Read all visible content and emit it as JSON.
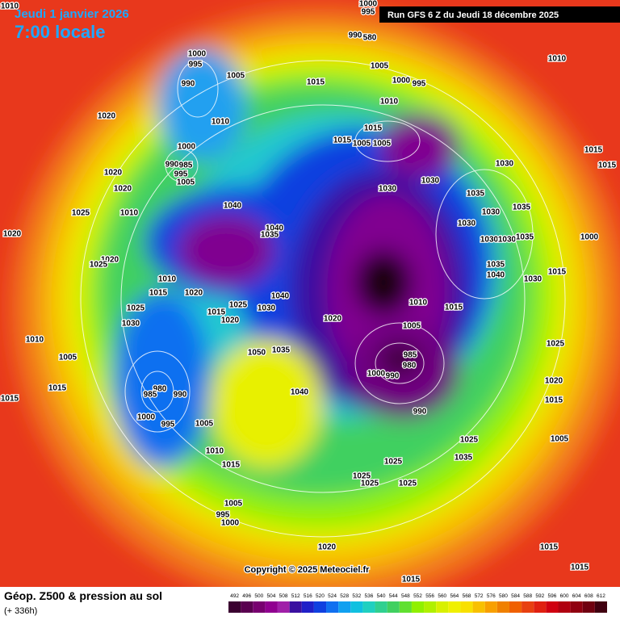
{
  "header": {
    "date": "Jeudi 1 janvier 2026",
    "time": "7:00 locale",
    "run": "Run GFS 6 Z du Jeudi 18 décembre 2025"
  },
  "copyright": "Copyright © 2025 Meteociel.fr",
  "footer": {
    "title": "Géop. Z500 & pression au sol",
    "lead": "(+ 336h)"
  },
  "legend": {
    "ticks": [
      492,
      496,
      500,
      504,
      508,
      512,
      516,
      520,
      524,
      528,
      532,
      536,
      540,
      544,
      548,
      552,
      556,
      560,
      564,
      568,
      572,
      576,
      580,
      584,
      588,
      592,
      596,
      600,
      604,
      608,
      612
    ],
    "colors": [
      "#3a0030",
      "#5a0050",
      "#780070",
      "#900090",
      "#a020a8",
      "#3a10a0",
      "#2020c8",
      "#1040e0",
      "#1070f0",
      "#10a0f0",
      "#10c0e0",
      "#20d0c0",
      "#30d090",
      "#40d060",
      "#60e030",
      "#90f000",
      "#b0f000",
      "#d8f000",
      "#f0f000",
      "#f8e000",
      "#f8c000",
      "#f8a000",
      "#f08000",
      "#f06000",
      "#e84010",
      "#e02010",
      "#d00010",
      "#b00010",
      "#900010",
      "#700010",
      "#400010"
    ]
  },
  "isobar_labels": [
    1010,
    1000,
    995,
    1010,
    990,
    580,
    1000,
    995,
    1005,
    990,
    1005,
    1015,
    1000,
    995,
    1010,
    1020,
    1010,
    1015,
    1015,
    1005,
    1005,
    1000,
    1020,
    990,
    985,
    995,
    1005,
    1030,
    1015,
    1015,
    1020,
    1025,
    1010,
    1040,
    1030,
    1030,
    1035,
    1030,
    1035,
    1030,
    1040,
    1035,
    1020,
    1000,
    1030,
    1030,
    1035,
    1020,
    1025,
    1035,
    1040,
    1010,
    1030,
    1015,
    1015,
    1020,
    1040,
    1010,
    1015,
    1025,
    1015,
    1025,
    1030,
    1020,
    1030,
    1020,
    1005,
    1010,
    1025,
    1050,
    1035,
    985,
    1005,
    980,
    1000,
    990,
    1020,
    1015,
    980,
    985,
    990,
    1040,
    1015,
    1015,
    990,
    1000,
    995,
    1005,
    1005,
    1025,
    1010,
    1035,
    1025,
    1015,
    1025,
    1025,
    1025,
    1005,
    995,
    1000,
    1020,
    1015,
    1015,
    1015
  ]
}
